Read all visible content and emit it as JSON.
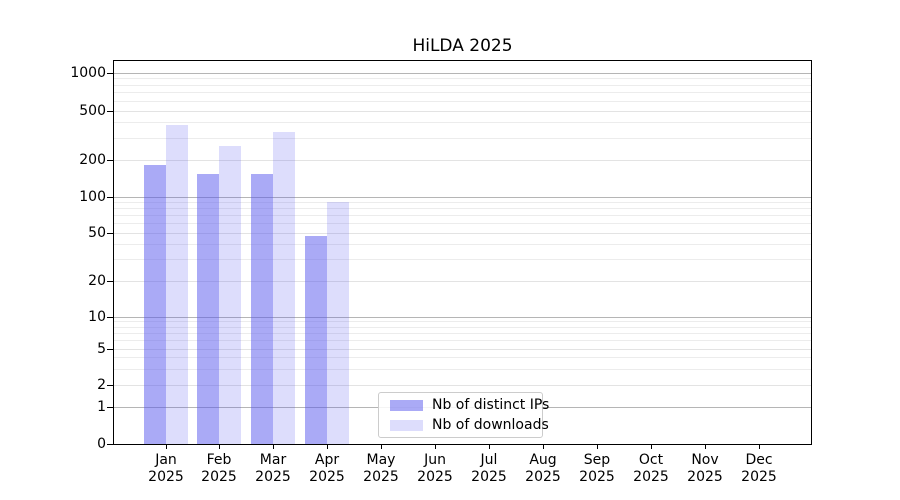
{
  "chart_data": {
    "type": "bar",
    "title": "HiLDA 2025",
    "categories": [
      "Jan",
      "Feb",
      "Mar",
      "Apr",
      "May",
      "Jun",
      "Jul",
      "Aug",
      "Sep",
      "Oct",
      "Nov",
      "Dec"
    ],
    "x_year_label": "2025",
    "series": [
      {
        "name": "Nb of distinct IPs",
        "color": "#5555ee",
        "opacity": 0.5,
        "values": [
          182,
          154,
          153,
          47,
          0,
          0,
          0,
          0,
          0,
          0,
          0,
          0
        ]
      },
      {
        "name": "Nb of downloads",
        "color": "#5555ee",
        "opacity": 0.2,
        "values": [
          385,
          260,
          337,
          91,
          0,
          0,
          0,
          0,
          0,
          0,
          0,
          0
        ]
      }
    ],
    "yscale": "symlog",
    "ylim": [
      0,
      1250
    ],
    "ytick_labels": [
      "0",
      "1",
      "2",
      "5",
      "10",
      "20",
      "50",
      "100",
      "200",
      "500",
      "1000"
    ],
    "ytick_values": [
      0,
      1,
      2,
      5,
      10,
      20,
      50,
      100,
      200,
      500,
      1000
    ],
    "xlabel": "",
    "ylabel": "",
    "grid": true,
    "legend_position": "lower-center",
    "colors": {
      "grid_major": "#b5b5b5",
      "grid_mid": "#e3e3e3",
      "grid_minor": "#ececec",
      "spine": "#000000",
      "legend_border": "#cccccc"
    }
  }
}
